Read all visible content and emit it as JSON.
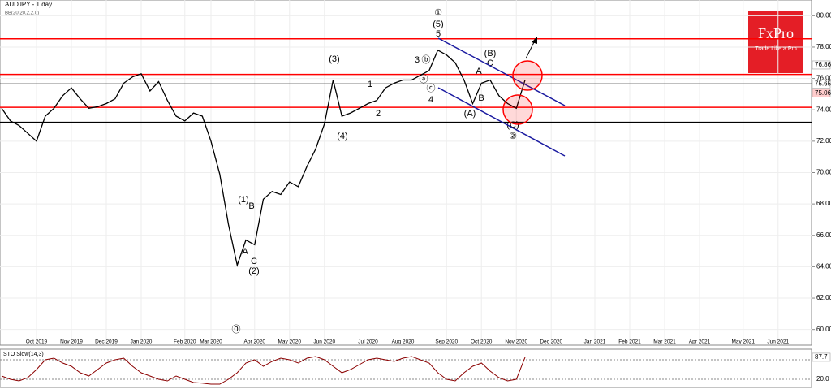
{
  "chart_data": {
    "type": "line",
    "title": "AUDJPY - 1 day",
    "indicator": "BB(20,20,2,2.0)",
    "logo": {
      "name": "FxPro",
      "tagline": "Trade Like a Pro"
    },
    "categories": [
      null,
      null,
      null,
      null,
      "Oct 2019",
      null,
      null,
      null,
      "Nov 2019",
      null,
      null,
      null,
      "Dec 2019",
      null,
      null,
      null,
      "Jan 2020",
      null,
      null,
      null,
      null,
      "Feb 2020",
      null,
      null,
      "Mar 2020",
      null,
      null,
      null,
      null,
      "Apr 2020",
      null,
      null,
      null,
      "May 2020",
      null,
      null,
      null,
      "Jun 2020",
      null,
      null,
      null,
      null,
      "Jul 2020",
      null,
      null,
      null,
      "Aug 2020",
      null,
      null,
      null,
      null,
      "Sep 2020",
      null,
      null,
      null,
      "Oct 2020",
      null,
      null,
      null,
      "Nov 2020",
      null,
      null,
      null,
      "Dec 2020",
      null,
      null,
      null,
      null,
      "Jan 2021",
      null,
      null,
      null,
      "Feb 2021",
      null,
      null,
      null,
      "Mar 2021",
      null,
      null,
      null,
      "Apr 2021",
      null,
      null,
      null,
      null,
      "May 2021",
      null,
      null,
      null,
      "Jun 2021",
      null,
      null,
      null
    ],
    "series": [
      {
        "name": "AUDJPY",
        "color": "#000000",
        "values": [
          74.1,
          73.3,
          73.0,
          72.5,
          72.0,
          73.6,
          74.1,
          74.9,
          75.4,
          74.7,
          74.1,
          74.2,
          74.4,
          74.7,
          75.7,
          76.1,
          76.3,
          75.2,
          75.8,
          74.6,
          73.6,
          73.3,
          73.8,
          73.6,
          72.0,
          69.9,
          66.7,
          64.1,
          65.7,
          65.4,
          68.3,
          68.8,
          68.6,
          69.4,
          69.1,
          70.4,
          71.5,
          73.1,
          75.9,
          73.6,
          73.8,
          74.1,
          74.4,
          74.6,
          75.4,
          75.7,
          75.9,
          75.9,
          76.2,
          76.5,
          77.8,
          77.5,
          77.0,
          75.9,
          74.4,
          75.7,
          75.9,
          74.9,
          74.4,
          74.1,
          75.9,
          null,
          null,
          null,
          null,
          null,
          null,
          null,
          null,
          null,
          null,
          null,
          null,
          null,
          null,
          null,
          null,
          null,
          null,
          null,
          null,
          null,
          null,
          null,
          null,
          null,
          null,
          null,
          null,
          null,
          null,
          null,
          null
        ]
      }
    ],
    "ylim": [
      59,
      81
    ],
    "yticks": [
      {
        "value": 60,
        "label": "60.00"
      },
      {
        "value": 62,
        "label": "62.00"
      },
      {
        "value": 64,
        "label": "64.00"
      },
      {
        "value": 66,
        "label": "66.00"
      },
      {
        "value": 68,
        "label": "68.00"
      },
      {
        "value": 70,
        "label": "70.00"
      },
      {
        "value": 72,
        "label": "72.00"
      },
      {
        "value": 74,
        "label": "74.00"
      },
      {
        "value": 76,
        "label": "76.00"
      },
      {
        "value": 78,
        "label": "78.00"
      },
      {
        "value": 80,
        "label": "80.00"
      }
    ],
    "levels": [
      {
        "value": 78.53,
        "color": "#ff0000"
      },
      {
        "value": 76.26,
        "color": "#ff0000"
      },
      {
        "value": 75.65,
        "color": "#000000"
      },
      {
        "value": 74.16,
        "color": "#ff0000"
      },
      {
        "value": 73.21,
        "color": "#000000"
      }
    ],
    "price_labels": [
      {
        "value": 76.86,
        "label": "76.86"
      },
      {
        "value": 75.65,
        "label": "75.65"
      },
      {
        "value": 75.06,
        "label": "75.06"
      }
    ],
    "annotations": [
      "①",
      "(5)",
      "5",
      "(3)",
      "3",
      "ⓑ",
      "ⓐ",
      "ⓒ",
      "4",
      "1",
      "2",
      "(4)",
      "(1)",
      "B",
      "A",
      "C",
      "(2)",
      "⓪",
      "(A)",
      "B",
      "(B)",
      "C",
      "A",
      "(C)",
      "②"
    ],
    "oscillator": {
      "name": "STO Slow(14,3)",
      "color": "#8b0000",
      "values": [
        30,
        20,
        15,
        25,
        50,
        80,
        85,
        70,
        60,
        40,
        30,
        50,
        70,
        80,
        85,
        60,
        40,
        30,
        20,
        15,
        30,
        20,
        10,
        8,
        5,
        5,
        20,
        40,
        70,
        80,
        60,
        75,
        85,
        80,
        70,
        85,
        90,
        80,
        60,
        40,
        50,
        65,
        80,
        85,
        80,
        75,
        85,
        90,
        80,
        70,
        40,
        20,
        15,
        40,
        60,
        70,
        45,
        25,
        15,
        20,
        87.7,
        null,
        null,
        null,
        null,
        null,
        null,
        null,
        null,
        null,
        null,
        null,
        null,
        null,
        null,
        null,
        null,
        null,
        null,
        null,
        null,
        null,
        null,
        null,
        null,
        null,
        null,
        null,
        null,
        null,
        null,
        null,
        null
      ],
      "y2lim": [
        0,
        100
      ],
      "y2ticks": [
        {
          "value": 20,
          "label": "20.0"
        },
        {
          "value": 80,
          "label": "80.0"
        }
      ],
      "current": {
        "value": 87.7,
        "label": "87.7"
      }
    },
    "grid": true
  }
}
